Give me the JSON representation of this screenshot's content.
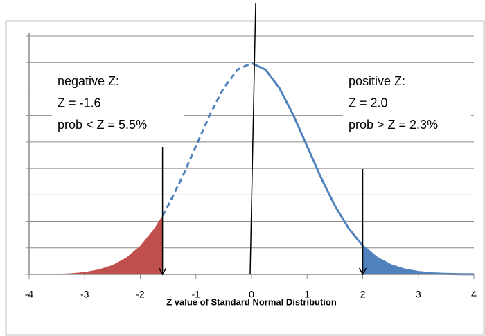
{
  "chart_data": {
    "type": "line",
    "x_label": "Z value of Standard Normal Distribution",
    "x": [
      -4,
      -3.75,
      -3.5,
      -3.25,
      -3,
      -2.75,
      -2.5,
      -2.25,
      -2,
      -1.75,
      -1.6,
      -1.5,
      -1.25,
      -1,
      -0.75,
      -0.5,
      -0.25,
      0,
      0.25,
      0.5,
      0.75,
      1,
      1.25,
      1.5,
      1.75,
      2,
      2.25,
      2.5,
      2.75,
      3,
      3.25,
      3.5,
      3.75,
      4
    ],
    "values": [
      0.0001,
      0.0004,
      0.0009,
      0.002,
      0.0044,
      0.0091,
      0.0175,
      0.0317,
      0.054,
      0.0863,
      0.1109,
      0.1295,
      0.1826,
      0.242,
      0.3011,
      0.3521,
      0.3867,
      0.3989,
      0.3867,
      0.3521,
      0.3011,
      0.242,
      0.1826,
      0.1295,
      0.0863,
      0.054,
      0.0317,
      0.0175,
      0.0091,
      0.0044,
      0.002,
      0.0009,
      0.0004,
      0.0001
    ],
    "line_color": "#4f81bd",
    "dashed_range": [
      -1.6,
      0
    ],
    "shaded": [
      {
        "x": -1.6,
        "side": "left",
        "color": "#c0504d"
      },
      {
        "x": 2.0,
        "side": "right",
        "color": "#4f81bd"
      }
    ],
    "xlim": [
      -4,
      4
    ],
    "xticks": [
      -4,
      -3,
      -2,
      -1,
      0,
      1,
      2,
      3,
      4
    ],
    "ylim": [
      0,
      0.45
    ],
    "yticks": [
      0,
      0.05,
      0.1,
      0.15,
      0.2,
      0.25,
      0.3,
      0.35,
      0.4,
      0.45
    ],
    "grid": true,
    "annotations": [
      {
        "lines": [
          "negative Z:",
          "Z = -1.6",
          "prob < Z = 5.5%"
        ],
        "side": "left"
      },
      {
        "lines": [
          "positive Z:",
          "Z = 2.0",
          "prob > Z = 2.3%"
        ],
        "side": "right"
      }
    ]
  }
}
